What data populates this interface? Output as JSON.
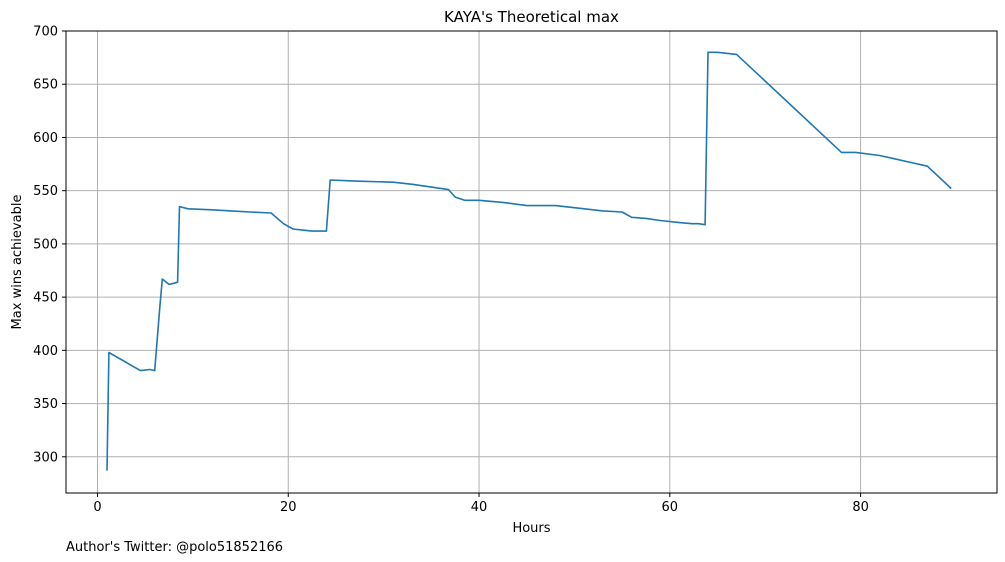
{
  "chart_data": {
    "type": "line",
    "title": "KAYA's Theoretical max",
    "xlabel": "Hours",
    "ylabel": "Max wins achievable",
    "xlim": [
      -3.3,
      94.3
    ],
    "ylim": [
      266,
      700
    ],
    "xticks": [
      0,
      20,
      40,
      60,
      80
    ],
    "yticks": [
      300,
      350,
      400,
      450,
      500,
      550,
      600,
      650,
      700
    ],
    "grid": true,
    "line_color": "#1f77b4",
    "series": [
      {
        "x": [
          1.0,
          1.2,
          4.5,
          5.5,
          6.0,
          6.5,
          6.8,
          7.5,
          8.0,
          8.4,
          8.6,
          9.5,
          12.0,
          14.0,
          16.0,
          18.2,
          19.5,
          20.5,
          21.5,
          22.5,
          24.0,
          24.4,
          27.0,
          31.0,
          33.0,
          36.8,
          37.5,
          38.5,
          40.0,
          42.5,
          45.0,
          48.0,
          50.0,
          53.0,
          55.0,
          56.0,
          57.5,
          59.0,
          61.0,
          62.3,
          63.0,
          63.7,
          64.0,
          65.0,
          67.0,
          78.0,
          79.5,
          82.0,
          83.5,
          85.0,
          87.0,
          89.5
        ],
        "y": [
          287,
          398,
          381,
          382,
          381,
          437,
          467,
          462,
          463,
          464,
          535,
          533,
          532,
          531,
          530,
          529,
          519,
          514,
          513,
          512,
          512,
          560,
          559,
          558,
          556,
          551,
          544,
          541,
          541,
          539,
          536,
          536,
          534,
          531,
          530,
          525,
          524,
          522,
          520,
          519,
          519,
          518,
          680,
          680,
          678,
          586,
          586,
          583,
          580,
          577,
          573,
          552
        ]
      }
    ],
    "footnote": "Author's Twitter: @polo51852166"
  }
}
